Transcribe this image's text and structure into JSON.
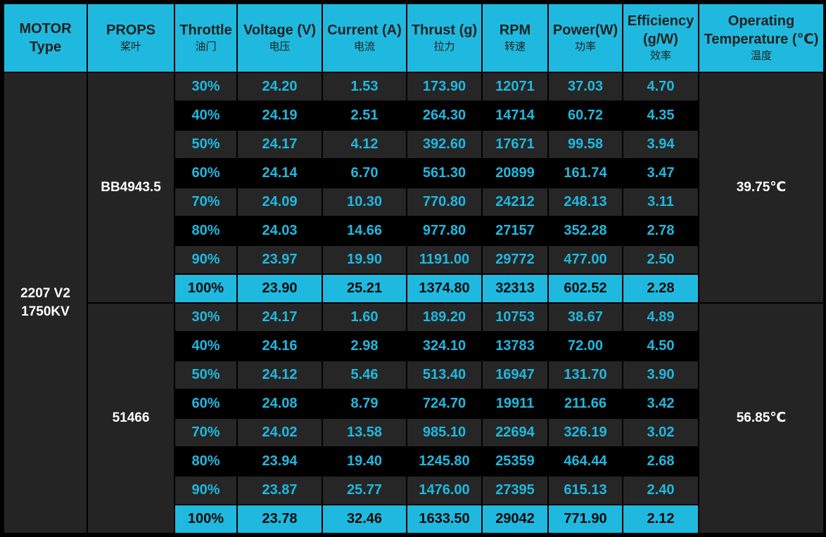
{
  "headers": [
    {
      "en": "MOTOR Type",
      "cn": ""
    },
    {
      "en": "PROPS",
      "cn": "桨叶"
    },
    {
      "en": "Throttle",
      "cn": "油门"
    },
    {
      "en": "Voltage (V)",
      "cn": "电压"
    },
    {
      "en": "Current (A)",
      "cn": "电流"
    },
    {
      "en": "Thrust (g)",
      "cn": "拉力"
    },
    {
      "en": "RPM",
      "cn": "转速"
    },
    {
      "en": "Power(W)",
      "cn": "功率"
    },
    {
      "en": "Efficiency (g/W)",
      "cn": "效率"
    },
    {
      "en": "Operating Temperature (℃)",
      "cn": "温度"
    }
  ],
  "motor": {
    "line1": "2207 V2",
    "line2": "1750KV"
  },
  "groups": [
    {
      "prop": "BB4943.5",
      "temperature": "39.75℃",
      "rows": [
        [
          "30%",
          "24.20",
          "1.53",
          "173.90",
          "12071",
          "37.03",
          "4.70"
        ],
        [
          "40%",
          "24.19",
          "2.51",
          "264.30",
          "14714",
          "60.72",
          "4.35"
        ],
        [
          "50%",
          "24.17",
          "4.12",
          "392.60",
          "17671",
          "99.58",
          "3.94"
        ],
        [
          "60%",
          "24.14",
          "6.70",
          "561.30",
          "20899",
          "161.74",
          "3.47"
        ],
        [
          "70%",
          "24.09",
          "10.30",
          "770.80",
          "24212",
          "248.13",
          "3.11"
        ],
        [
          "80%",
          "24.03",
          "14.66",
          "977.80",
          "27157",
          "352.28",
          "2.78"
        ],
        [
          "90%",
          "23.97",
          "19.90",
          "1191.00",
          "29772",
          "477.00",
          "2.50"
        ],
        [
          "100%",
          "23.90",
          "25.21",
          "1374.80",
          "32313",
          "602.52",
          "2.28"
        ]
      ]
    },
    {
      "prop": "51466",
      "temperature": "56.85℃",
      "rows": [
        [
          "30%",
          "24.17",
          "1.60",
          "189.20",
          "10753",
          "38.67",
          "4.89"
        ],
        [
          "40%",
          "24.16",
          "2.98",
          "324.10",
          "13783",
          "72.00",
          "4.50"
        ],
        [
          "50%",
          "24.12",
          "5.46",
          "513.40",
          "16947",
          "131.70",
          "3.90"
        ],
        [
          "60%",
          "24.08",
          "8.79",
          "724.70",
          "19911",
          "211.66",
          "3.42"
        ],
        [
          "70%",
          "24.02",
          "13.58",
          "985.10",
          "22694",
          "326.19",
          "3.02"
        ],
        [
          "80%",
          "23.94",
          "19.40",
          "1245.80",
          "25359",
          "464.44",
          "2.68"
        ],
        [
          "90%",
          "23.87",
          "25.77",
          "1476.00",
          "27395",
          "615.13",
          "2.40"
        ],
        [
          "100%",
          "23.78",
          "32.46",
          "1633.50",
          "29042",
          "771.90",
          "2.12"
        ]
      ]
    }
  ],
  "colors": {
    "accent": "#1fb9df",
    "row_dark": "#000000",
    "row_light": "#262626",
    "merged_cell": "#242424"
  }
}
